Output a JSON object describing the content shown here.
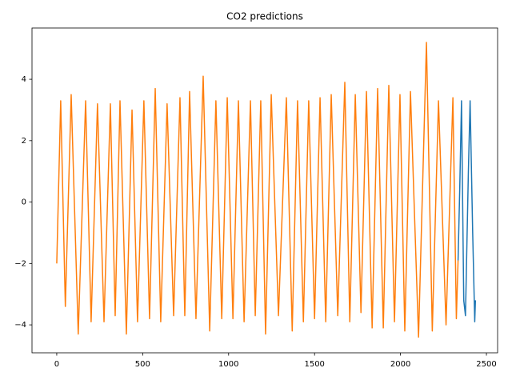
{
  "chart_data": {
    "type": "line",
    "title": "CO2 predictions",
    "xlim": [
      -144,
      2565
    ],
    "ylim": [
      -4.91,
      5.67
    ],
    "xticks": [
      0,
      500,
      1000,
      1500,
      2000,
      2500
    ],
    "yticks": [
      {
        "value": -4,
        "label": "−4"
      },
      {
        "value": -2,
        "label": "−2"
      },
      0,
      2,
      4
    ],
    "grid": false,
    "series": [
      {
        "color": "#1f77b4",
        "x": [
          2335,
          2345,
          2355,
          2368,
          2378,
          2395,
          2405,
          2420,
          2432,
          2436
        ],
        "values": [
          -1.9,
          0.5,
          3.3,
          -3.2,
          -3.7,
          1.0,
          3.3,
          -1.0,
          -3.9,
          -3.2
        ]
      },
      {
        "color": "#ff7f0e",
        "x": [
          0,
          23,
          50,
          84,
          125,
          168,
          200,
          237,
          275,
          312,
          340,
          368,
          405,
          438,
          470,
          507,
          540,
          573,
          605,
          642,
          680,
          717,
          745,
          773,
          810,
          852,
          890,
          926,
          960,
          992,
          1025,
          1057,
          1090,
          1127,
          1155,
          1187,
          1215,
          1248,
          1290,
          1336,
          1370,
          1401,
          1435,
          1466,
          1500,
          1532,
          1565,
          1597,
          1635,
          1676,
          1705,
          1737,
          1770,
          1802,
          1835,
          1867,
          1900,
          1932,
          1965,
          1997,
          2025,
          2058,
          2105,
          2151,
          2185,
          2221,
          2265,
          2305,
          2325,
          2335
        ],
        "values": [
          -2.0,
          3.3,
          -3.4,
          3.5,
          -4.3,
          3.3,
          -3.9,
          3.2,
          -3.9,
          3.2,
          -3.7,
          3.3,
          -4.3,
          3.0,
          -3.9,
          3.3,
          -3.8,
          3.7,
          -3.9,
          3.2,
          -3.7,
          3.4,
          -3.7,
          3.6,
          -3.8,
          4.1,
          -4.2,
          3.3,
          -3.8,
          3.4,
          -3.8,
          3.3,
          -3.9,
          3.3,
          -3.7,
          3.3,
          -4.3,
          3.5,
          -3.7,
          3.4,
          -4.2,
          3.3,
          -3.9,
          3.3,
          -3.8,
          3.4,
          -3.9,
          3.5,
          -3.7,
          3.9,
          -3.9,
          3.5,
          -3.6,
          3.6,
          -4.1,
          3.7,
          -4.1,
          3.8,
          -3.9,
          3.5,
          -4.2,
          3.6,
          -4.4,
          5.2,
          -4.2,
          3.3,
          -4.0,
          3.4,
          -3.8,
          -1.9
        ]
      }
    ]
  }
}
